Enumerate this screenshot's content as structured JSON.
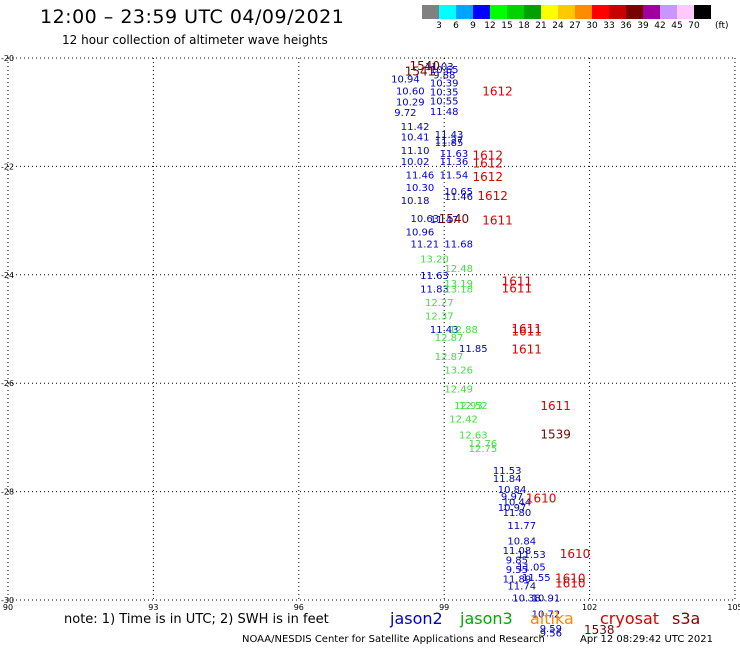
{
  "header": {
    "title": "12:00 – 23:59 UTC 04/09/2021",
    "subtitle": "12 hour collection of altimeter wave heights"
  },
  "colorbar": {
    "colors": [
      "#808080",
      "#00ffff",
      "#00a5ff",
      "#0000ff",
      "#00ff00",
      "#00d200",
      "#00a000",
      "#ffff00",
      "#ffc800",
      "#ff8c00",
      "#ff0000",
      "#c80000",
      "#780000",
      "#a000a0",
      "#c896ff",
      "#ffc8ff",
      "#000000"
    ],
    "labels": [
      "3",
      "6",
      "9",
      "12",
      "15",
      "18",
      "21",
      "24",
      "27",
      "30",
      "33",
      "36",
      "39",
      "42",
      "45",
      "70"
    ],
    "unit": "(ft)"
  },
  "legend": [
    {
      "name": "jason2",
      "color": "#0000cc"
    },
    {
      "name": "jason3",
      "color": "#00aa00"
    },
    {
      "name": "altika",
      "color": "#ff8800"
    },
    {
      "name": "cryosat",
      "color": "#dd0000"
    },
    {
      "name": "s3a",
      "color": "#880000"
    }
  ],
  "footer": {
    "note": "note: 1) Time is in UTC; 2) SWH is in feet",
    "credit": "NOAA/NESDIS Center for Satellite Applications and Research",
    "generated": "Apr 12 08:29:42 UTC 2021"
  },
  "chart_data": {
    "type": "scatter",
    "x_ticks": [
      "90",
      "93",
      "96",
      "99",
      "102",
      "105"
    ],
    "y_ticks": [
      "-20",
      "-22",
      "-24",
      "-26",
      "-28",
      "-30"
    ],
    "xlim": [
      90,
      105
    ],
    "ylim": [
      -30,
      -20
    ],
    "grid": true,
    "series": [
      {
        "name": "jason2",
        "color": "#0000cc",
        "points": [
          {
            "x": 98.9,
            "y": -20.15,
            "label": "11.03"
          },
          {
            "x": 99.0,
            "y": -20.2,
            "label": "10.65"
          },
          {
            "x": 99.0,
            "y": -20.3,
            "label": "9.88"
          },
          {
            "x": 98.2,
            "y": -20.38,
            "label": "10.94"
          },
          {
            "x": 99.0,
            "y": -20.45,
            "label": "10.39"
          },
          {
            "x": 98.3,
            "y": -20.6,
            "label": "10.60"
          },
          {
            "x": 99.0,
            "y": -20.62,
            "label": "10.35"
          },
          {
            "x": 98.3,
            "y": -20.8,
            "label": "10.29"
          },
          {
            "x": 99.0,
            "y": -20.78,
            "label": "10.55"
          },
          {
            "x": 98.2,
            "y": -21.0,
            "label": "9.72"
          },
          {
            "x": 99.0,
            "y": -20.98,
            "label": "11.48"
          },
          {
            "x": 98.4,
            "y": -21.25,
            "label": "11.42"
          },
          {
            "x": 99.1,
            "y": -21.4,
            "label": "11.43"
          },
          {
            "x": 98.4,
            "y": -21.45,
            "label": "10.41"
          },
          {
            "x": 99.1,
            "y": -21.5,
            "label": "11.27"
          },
          {
            "x": 99.1,
            "y": -21.55,
            "label": "11.85"
          },
          {
            "x": 98.4,
            "y": -21.7,
            "label": "11.10"
          },
          {
            "x": 99.2,
            "y": -21.75,
            "label": "11.63"
          },
          {
            "x": 98.4,
            "y": -21.9,
            "label": "10.02"
          },
          {
            "x": 99.2,
            "y": -21.9,
            "label": "11.36"
          },
          {
            "x": 98.5,
            "y": -22.15,
            "label": "11.46"
          },
          {
            "x": 99.2,
            "y": -22.15,
            "label": "11.54"
          },
          {
            "x": 98.5,
            "y": -22.38,
            "label": "10.30"
          },
          {
            "x": 99.3,
            "y": -22.45,
            "label": "10.65"
          },
          {
            "x": 99.3,
            "y": -22.55,
            "label": "11.46"
          },
          {
            "x": 98.4,
            "y": -22.62,
            "label": "10.18"
          },
          {
            "x": 98.6,
            "y": -22.95,
            "label": "10.63"
          },
          {
            "x": 99.0,
            "y": -22.97,
            "label": "11.47"
          },
          {
            "x": 98.5,
            "y": -23.2,
            "label": "10.96"
          },
          {
            "x": 98.6,
            "y": -23.42,
            "label": "11.21"
          },
          {
            "x": 99.3,
            "y": -23.42,
            "label": "11.68"
          },
          {
            "x": 98.8,
            "y": -24.0,
            "label": "11.63"
          },
          {
            "x": 98.8,
            "y": -24.25,
            "label": "11.83"
          },
          {
            "x": 99.0,
            "y": -25.0,
            "label": "11.43"
          },
          {
            "x": 99.6,
            "y": -25.35,
            "label": "11.85"
          },
          {
            "x": 100.3,
            "y": -27.6,
            "label": "11.53"
          },
          {
            "x": 100.3,
            "y": -27.75,
            "label": "11.84"
          },
          {
            "x": 100.4,
            "y": -27.95,
            "label": "10.84"
          },
          {
            "x": 100.4,
            "y": -28.08,
            "label": "9.97"
          },
          {
            "x": 100.5,
            "y": -28.18,
            "label": "10.44"
          },
          {
            "x": 100.4,
            "y": -28.28,
            "label": "10.97"
          },
          {
            "x": 100.5,
            "y": -28.38,
            "label": "11.80"
          },
          {
            "x": 100.6,
            "y": -28.62,
            "label": "11.77"
          },
          {
            "x": 100.6,
            "y": -28.9,
            "label": "10.84"
          },
          {
            "x": 100.5,
            "y": -29.08,
            "label": "11.08"
          },
          {
            "x": 100.8,
            "y": -29.15,
            "label": "11.53"
          },
          {
            "x": 100.5,
            "y": -29.25,
            "label": "9.85"
          },
          {
            "x": 100.8,
            "y": -29.38,
            "label": "11.05"
          },
          {
            "x": 100.5,
            "y": -29.43,
            "label": "9.55"
          },
          {
            "x": 100.5,
            "y": -29.6,
            "label": "11.89"
          },
          {
            "x": 100.9,
            "y": -29.58,
            "label": "11.55"
          },
          {
            "x": 100.6,
            "y": -29.73,
            "label": "11.74"
          },
          {
            "x": 100.7,
            "y": -29.95,
            "label": "10.38"
          },
          {
            "x": 101.1,
            "y": -29.95,
            "label": "10.91"
          },
          {
            "x": 101.1,
            "y": -30.25,
            "label": "10.72"
          },
          {
            "x": 101.2,
            "y": -30.52,
            "label": "9.59"
          },
          {
            "x": 101.2,
            "y": -30.6,
            "label": "9.56"
          }
        ]
      },
      {
        "name": "jason3",
        "color": "#44dd44",
        "points": [
          {
            "x": 98.8,
            "y": -23.7,
            "label": "13.20"
          },
          {
            "x": 99.3,
            "y": -23.87,
            "label": "12.48"
          },
          {
            "x": 99.3,
            "y": -24.15,
            "label": "13.19"
          },
          {
            "x": 99.3,
            "y": -24.25,
            "label": "13.18"
          },
          {
            "x": 98.9,
            "y": -24.5,
            "label": "12.27"
          },
          {
            "x": 98.9,
            "y": -24.75,
            "label": "12.37"
          },
          {
            "x": 99.4,
            "y": -25.0,
            "label": "12.88"
          },
          {
            "x": 99.1,
            "y": -25.15,
            "label": "12.87"
          },
          {
            "x": 99.1,
            "y": -25.5,
            "label": "12.87"
          },
          {
            "x": 99.3,
            "y": -25.75,
            "label": "13.26"
          },
          {
            "x": 99.3,
            "y": -26.1,
            "label": "12.49"
          },
          {
            "x": 99.5,
            "y": -26.4,
            "label": "12.93"
          },
          {
            "x": 99.6,
            "y": -26.4,
            "label": "12.52"
          },
          {
            "x": 99.4,
            "y": -26.65,
            "label": "12.42"
          },
          {
            "x": 99.6,
            "y": -26.95,
            "label": "12.63"
          },
          {
            "x": 99.8,
            "y": -27.1,
            "label": "12.76"
          },
          {
            "x": 99.8,
            "y": -27.2,
            "label": "12.75"
          }
        ]
      },
      {
        "name": "cryosat",
        "color": "#dd0000",
        "points": [
          {
            "x": 100.1,
            "y": -20.62,
            "label": "1612"
          },
          {
            "x": 99.9,
            "y": -21.8,
            "label": "1612"
          },
          {
            "x": 99.9,
            "y": -21.95,
            "label": "1612"
          },
          {
            "x": 99.9,
            "y": -22.2,
            "label": "1612"
          },
          {
            "x": 100.0,
            "y": -22.55,
            "label": "1612"
          },
          {
            "x": 100.1,
            "y": -23.0,
            "label": "1611"
          },
          {
            "x": 100.5,
            "y": -24.12,
            "label": "1611"
          },
          {
            "x": 100.5,
            "y": -24.25,
            "label": "1611"
          },
          {
            "x": 100.7,
            "y": -25.0,
            "label": "1611"
          },
          {
            "x": 100.7,
            "y": -25.05,
            "label": "1611"
          },
          {
            "x": 100.7,
            "y": -25.38,
            "label": "1611"
          },
          {
            "x": 101.3,
            "y": -26.42,
            "label": "1611"
          },
          {
            "x": 101.0,
            "y": -28.13,
            "label": "1610"
          },
          {
            "x": 101.7,
            "y": -29.15,
            "label": "1610"
          },
          {
            "x": 101.6,
            "y": -29.6,
            "label": "1610"
          },
          {
            "x": 101.6,
            "y": -29.7,
            "label": "1610"
          }
        ]
      },
      {
        "name": "s3a",
        "color": "#7a0000",
        "points": [
          {
            "x": 98.6,
            "y": -20.15,
            "label": "1540"
          },
          {
            "x": 98.5,
            "y": -20.25,
            "label": "1541"
          },
          {
            "x": 99.2,
            "y": -22.97,
            "label": "1540"
          },
          {
            "x": 101.3,
            "y": -26.95,
            "label": "1539"
          },
          {
            "x": 102.2,
            "y": -30.55,
            "label": "1538"
          }
        ]
      }
    ]
  }
}
